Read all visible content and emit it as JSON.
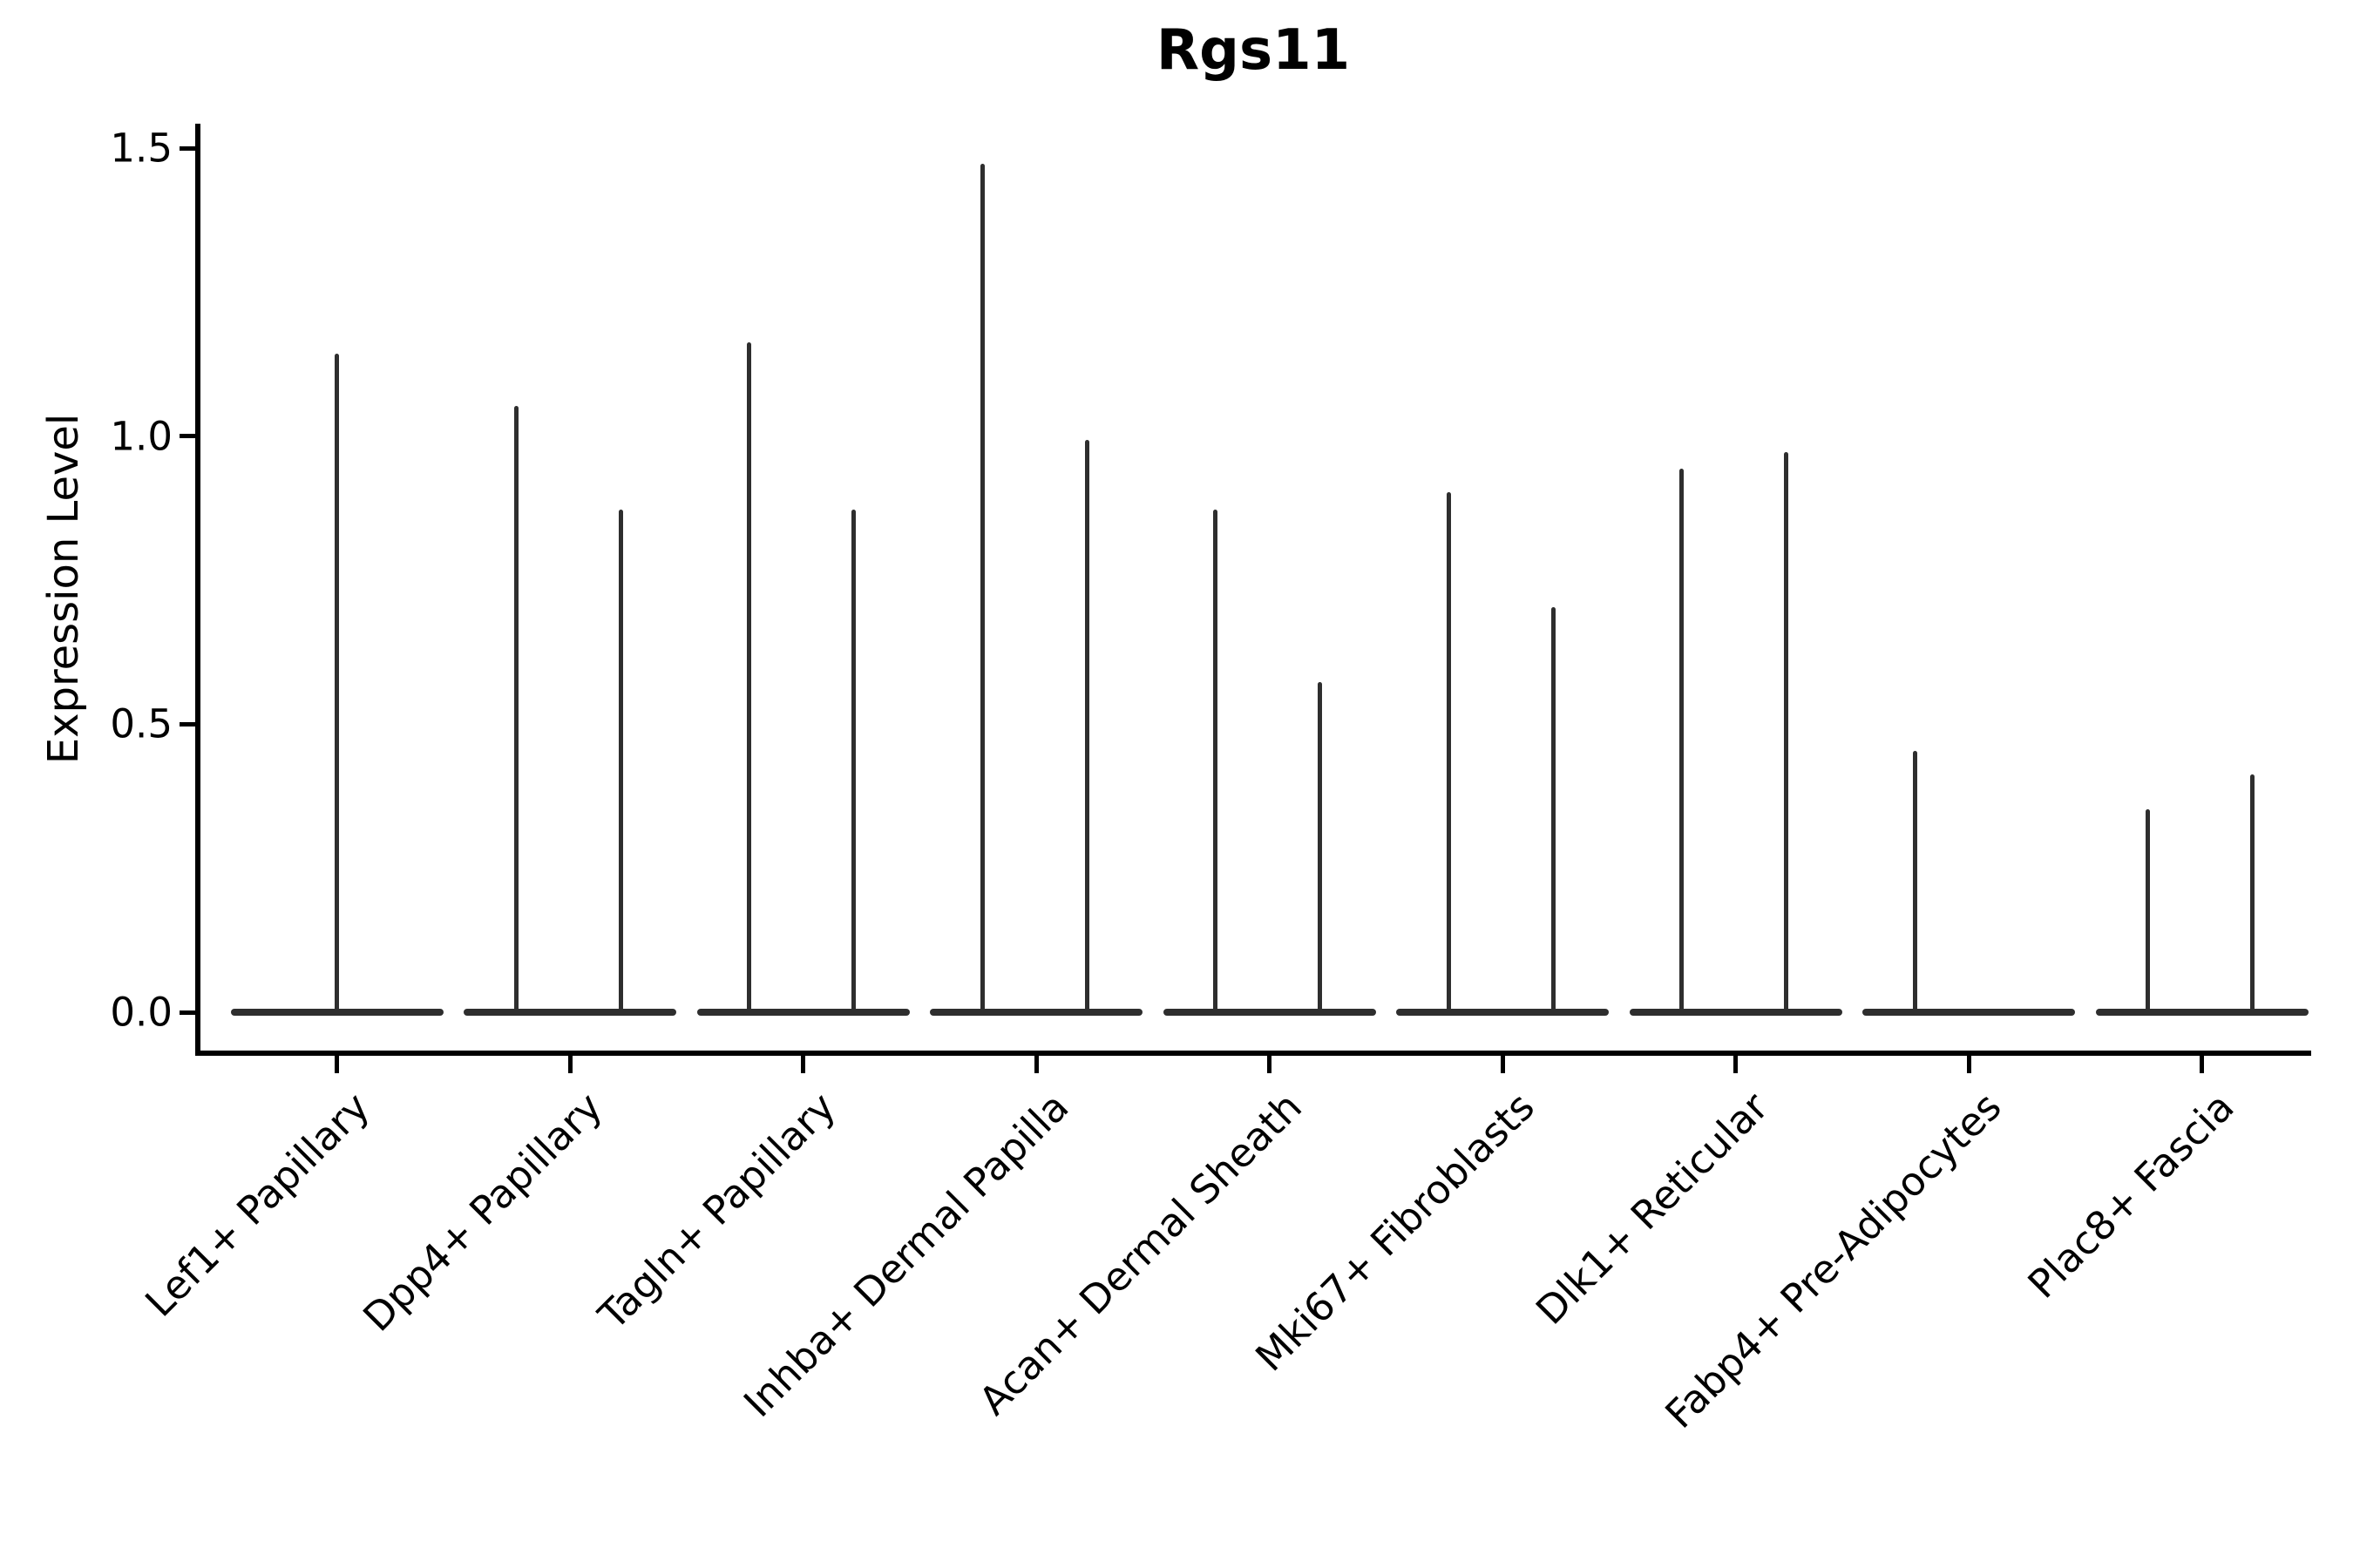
{
  "chart_data": {
    "type": "violin",
    "title": "Rgs11",
    "ylabel": "Expression Level",
    "xlabel": "",
    "grid": false,
    "legend": "none",
    "ylim": [
      -0.04,
      1.55
    ],
    "yticks": [
      0,
      0.5,
      1.0,
      1.5
    ],
    "ytick_labels": [
      "0.0",
      "0.5",
      "1.0",
      "1.5"
    ],
    "categories": [
      "Lef1+ Papillary",
      "Dpp4+ Papillary",
      "Tagln+ Papillary",
      "Inhba+ Dermal Papilla",
      "Acan+ Dermal Sheath",
      "Mki67+ Fibroblasts",
      "Dlk1+ Reticular",
      "Fabp4+ Pre-Adipocytes",
      "Plac8+ Fascia"
    ],
    "series": [
      {
        "category": "Lef1+ Papillary",
        "baseline_value": 0,
        "violins": [
          {
            "position": "center",
            "max": 1.14
          }
        ]
      },
      {
        "category": "Dpp4+ Papillary",
        "baseline_value": 0,
        "violins": [
          {
            "position": "left",
            "max": 1.05
          },
          {
            "position": "right",
            "max": 0.87
          }
        ]
      },
      {
        "category": "Tagln+ Papillary",
        "baseline_value": 0,
        "violins": [
          {
            "position": "left",
            "max": 1.16
          },
          {
            "position": "right",
            "max": 0.87
          }
        ]
      },
      {
        "category": "Inhba+ Dermal Papilla",
        "baseline_value": 0,
        "violins": [
          {
            "position": "left",
            "max": 1.47
          },
          {
            "position": "right",
            "max": 0.99
          }
        ]
      },
      {
        "category": "Acan+ Dermal Sheath",
        "baseline_value": 0,
        "violins": [
          {
            "position": "left",
            "max": 0.87
          },
          {
            "position": "right",
            "max": 0.57
          }
        ]
      },
      {
        "category": "Mki67+ Fibroblasts",
        "baseline_value": 0,
        "violins": [
          {
            "position": "left",
            "max": 0.9
          },
          {
            "position": "right",
            "max": 0.7
          }
        ]
      },
      {
        "category": "Dlk1+ Reticular",
        "baseline_value": 0,
        "violins": [
          {
            "position": "left",
            "max": 0.94
          },
          {
            "position": "right",
            "max": 0.97
          }
        ]
      },
      {
        "category": "Fabp4+ Pre-Adipocytes",
        "baseline_value": 0,
        "violins": [
          {
            "position": "left",
            "max": 0.45
          }
        ]
      },
      {
        "category": "Plac8+ Fascia",
        "baseline_value": 0,
        "violins": [
          {
            "position": "left",
            "max": 0.35
          },
          {
            "position": "right",
            "max": 0.41
          }
        ]
      }
    ],
    "colors": {
      "violin": "#2e2e2e",
      "axis": "#000000",
      "text": "#000000",
      "background": "#ffffff"
    }
  }
}
